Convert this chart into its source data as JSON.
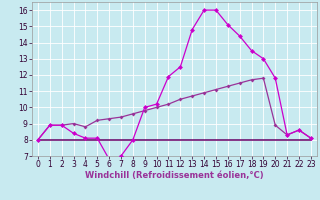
{
  "xlabel": "Windchill (Refroidissement éolien,°C)",
  "bg_color": "#c8eaf0",
  "grid_color": "#ffffff",
  "line_color_magenta": "#cc00cc",
  "line_color_purple2": "#993399",
  "line_color_dark": "#660066",
  "xlim": [
    -0.5,
    23.5
  ],
  "ylim": [
    7,
    16.5
  ],
  "yticks": [
    7,
    8,
    9,
    10,
    11,
    12,
    13,
    14,
    15,
    16
  ],
  "xticks": [
    0,
    1,
    2,
    3,
    4,
    5,
    6,
    7,
    8,
    9,
    10,
    11,
    12,
    13,
    14,
    15,
    16,
    17,
    18,
    19,
    20,
    21,
    22,
    23
  ],
  "line1_x": [
    0,
    1,
    2,
    3,
    4,
    5,
    6,
    7,
    8,
    9,
    10,
    11,
    12,
    13,
    14,
    15,
    16,
    17,
    18,
    19,
    20,
    21,
    22,
    23
  ],
  "line1_y": [
    8.0,
    8.9,
    8.9,
    8.4,
    8.1,
    8.1,
    6.8,
    7.0,
    8.0,
    10.0,
    10.2,
    11.9,
    12.5,
    14.8,
    16.0,
    16.0,
    15.1,
    14.4,
    13.5,
    13.0,
    11.8,
    8.3,
    8.6,
    8.1
  ],
  "line2_x": [
    0,
    1,
    2,
    3,
    4,
    5,
    6,
    7,
    8,
    9,
    10,
    11,
    12,
    13,
    14,
    15,
    16,
    17,
    18,
    19,
    20,
    21,
    22,
    23
  ],
  "line2_y": [
    8.0,
    8.9,
    8.9,
    9.0,
    8.8,
    9.2,
    9.3,
    9.4,
    9.6,
    9.8,
    10.0,
    10.2,
    10.5,
    10.7,
    10.9,
    11.1,
    11.3,
    11.5,
    11.7,
    11.8,
    8.9,
    8.3,
    8.6,
    8.1
  ],
  "line3_x": [
    0,
    1,
    2,
    3,
    4,
    5,
    6,
    7,
    8,
    9,
    10,
    11,
    12,
    13,
    14,
    15,
    16,
    17,
    18,
    19,
    20,
    21,
    22,
    23
  ],
  "line3_y": [
    8.0,
    8.0,
    8.0,
    8.0,
    8.0,
    8.0,
    8.0,
    8.0,
    8.0,
    8.0,
    8.0,
    8.0,
    8.0,
    8.0,
    8.0,
    8.0,
    8.0,
    8.0,
    8.0,
    8.0,
    8.0,
    8.0,
    8.0,
    8.0
  ],
  "xlabel_color": "#993399",
  "xlabel_fontsize": 6.0,
  "tick_fontsize": 5.5,
  "marker_size": 2.5,
  "linewidth": 0.9
}
